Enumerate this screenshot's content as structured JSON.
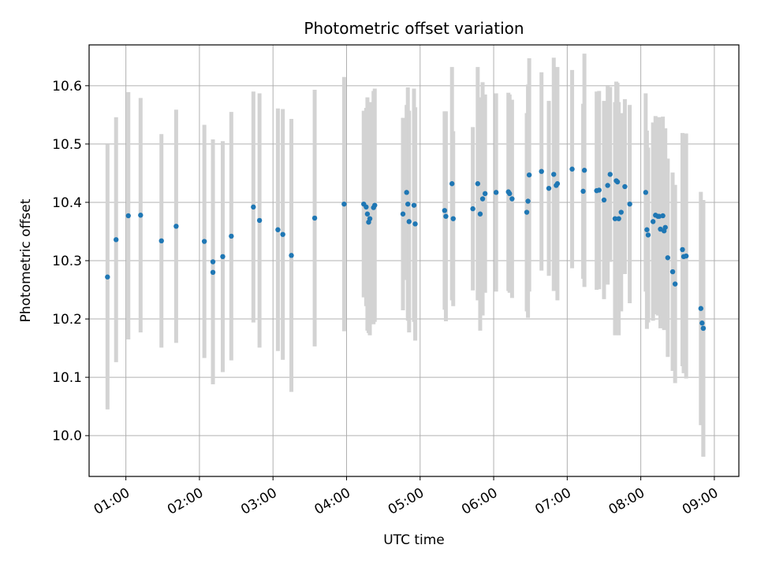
{
  "chart_data": {
    "type": "scatter",
    "title": "Photometric offset variation",
    "xlabel": "UTC time",
    "ylabel": "Photometric offset",
    "grid": true,
    "xlim": [
      "00:30",
      "09:20"
    ],
    "ylim": [
      9.93,
      10.67
    ],
    "x_ticks": [
      "01:00",
      "02:00",
      "03:00",
      "04:00",
      "05:00",
      "06:00",
      "07:00",
      "08:00",
      "09:00"
    ],
    "y_ticks": [
      "10.0",
      "10.1",
      "10.2",
      "10.3",
      "10.4",
      "10.5",
      "10.6"
    ],
    "colors": {
      "marker": "#1f77b4",
      "errorbar": "#d3d3d3",
      "grid": "#b0b0b0"
    },
    "series": [
      {
        "x": [
          "00:45",
          "00:52",
          "01:02",
          "01:12",
          "01:29",
          "01:41",
          "02:04",
          "02:11",
          "02:11",
          "02:19",
          "02:26",
          "02:44",
          "02:49",
          "03:04",
          "03:08",
          "03:15",
          "03:34",
          "03:58",
          "04:14",
          "04:16",
          "04:17",
          "04:18",
          "04:19",
          "04:22",
          "04:23",
          "04:46",
          "04:49",
          "04:50",
          "04:51",
          "04:55",
          "04:56",
          "05:20",
          "05:21",
          "05:26",
          "05:27",
          "05:43",
          "05:47",
          "05:49",
          "05:51",
          "05:53",
          "06:02",
          "06:12",
          "06:13",
          "06:15",
          "06:27",
          "06:28",
          "06:29",
          "06:39",
          "06:45",
          "06:49",
          "06:51",
          "06:52",
          "07:04",
          "07:13",
          "07:14",
          "07:24",
          "07:26",
          "07:30",
          "07:33",
          "07:35",
          "07:39",
          "07:40",
          "07:41",
          "07:42",
          "07:44",
          "07:47",
          "07:51",
          "08:04",
          "08:05",
          "08:06",
          "08:10",
          "08:12",
          "08:14",
          "08:15",
          "08:16",
          "08:18",
          "08:19",
          "08:20",
          "08:22",
          "08:26",
          "08:28",
          "08:34",
          "08:35",
          "08:37",
          "08:49",
          "08:50",
          "08:51",
          "08:51"
        ],
        "y": [
          10.272,
          10.336,
          10.377,
          10.378,
          10.334,
          10.359,
          10.333,
          10.298,
          10.28,
          10.307,
          10.342,
          10.392,
          10.369,
          10.353,
          10.345,
          10.309,
          10.373,
          10.397,
          10.397,
          10.392,
          10.38,
          10.366,
          10.372,
          10.391,
          10.395,
          10.38,
          10.417,
          10.397,
          10.367,
          10.395,
          10.363,
          10.386,
          10.376,
          10.432,
          10.372,
          10.389,
          10.432,
          10.38,
          10.406,
          10.415,
          10.417,
          10.418,
          10.415,
          10.406,
          10.383,
          10.402,
          10.447,
          10.453,
          10.424,
          10.448,
          10.429,
          10.432,
          10.457,
          10.419,
          10.455,
          10.42,
          10.421,
          10.404,
          10.429,
          10.448,
          10.372,
          10.437,
          10.435,
          10.372,
          10.383,
          10.427,
          10.397,
          10.417,
          10.353,
          10.344,
          10.367,
          10.378,
          10.376,
          10.376,
          10.354,
          10.377,
          10.351,
          10.357,
          10.305,
          10.281,
          10.26,
          10.319,
          10.307,
          10.308,
          10.218,
          10.193,
          10.184,
          10.184
        ],
        "yerr": [
          0.227,
          0.21,
          0.212,
          0.201,
          0.183,
          0.2,
          0.2,
          0.21,
          0.19,
          0.198,
          0.213,
          0.198,
          0.218,
          0.208,
          0.215,
          0.234,
          0.22,
          0.218,
          0.16,
          0.17,
          0.2,
          0.19,
          0.2,
          0.2,
          0.2,
          0.165,
          0.15,
          0.2,
          0.19,
          0.2,
          0.2,
          0.17,
          0.18,
          0.2,
          0.15,
          0.14,
          0.2,
          0.2,
          0.2,
          0.17,
          0.17,
          0.17,
          0.17,
          0.17,
          0.17,
          0.2,
          0.2,
          0.17,
          0.15,
          0.2,
          0.16,
          0.2,
          0.17,
          0.15,
          0.2,
          0.17,
          0.17,
          0.17,
          0.17,
          0.15,
          0.2,
          0.17,
          0.17,
          0.2,
          0.17,
          0.15,
          0.17,
          0.17,
          0.17,
          0.15,
          0.17,
          0.17,
          0.17,
          0.17,
          0.17,
          0.17,
          0.17,
          0.17,
          0.17,
          0.17,
          0.17,
          0.2,
          0.2,
          0.21,
          0.2,
          0.17,
          0.22,
          0.22
        ]
      }
    ]
  }
}
